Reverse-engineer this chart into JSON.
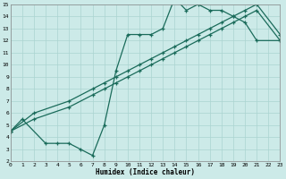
{
  "xlabel": "Humidex (Indice chaleur)",
  "xlim": [
    0,
    23
  ],
  "ylim": [
    2,
    15
  ],
  "xticks": [
    0,
    1,
    2,
    3,
    4,
    5,
    6,
    7,
    8,
    9,
    10,
    11,
    12,
    13,
    14,
    15,
    16,
    17,
    18,
    19,
    20,
    21,
    22,
    23
  ],
  "yticks": [
    2,
    3,
    4,
    5,
    6,
    7,
    8,
    9,
    10,
    11,
    12,
    13,
    14,
    15
  ],
  "bg_color": "#cceae8",
  "grid_color": "#aad4d0",
  "line_color": "#1a6b5a",
  "curve1_x": [
    0,
    1,
    3,
    4,
    5,
    6,
    7,
    8,
    9,
    10,
    11,
    12,
    13,
    14,
    15,
    16,
    17,
    18,
    19,
    20,
    21,
    23
  ],
  "curve1_y": [
    4.5,
    5.5,
    3.5,
    3.5,
    3.5,
    3.0,
    2.5,
    5.0,
    9.5,
    12.5,
    12.5,
    12.5,
    13.0,
    15.5,
    14.5,
    15.0,
    14.5,
    14.5,
    14.0,
    13.5,
    12.0,
    12.0
  ],
  "curve2_x": [
    0,
    2,
    5,
    7,
    8,
    9,
    10,
    11,
    12,
    13,
    14,
    15,
    16,
    17,
    18,
    19,
    20,
    21,
    23
  ],
  "curve2_y": [
    4.5,
    5.5,
    6.5,
    7.5,
    8.0,
    8.5,
    9.0,
    9.5,
    10.0,
    10.5,
    11.0,
    11.5,
    12.0,
    12.5,
    13.0,
    13.5,
    14.0,
    14.5,
    12.0
  ],
  "curve3_x": [
    0,
    2,
    5,
    7,
    8,
    9,
    10,
    11,
    12,
    13,
    14,
    15,
    16,
    17,
    18,
    19,
    20,
    21,
    23
  ],
  "curve3_y": [
    4.5,
    6.0,
    7.0,
    8.0,
    8.5,
    9.0,
    9.5,
    10.0,
    10.5,
    11.0,
    11.5,
    12.0,
    12.5,
    13.0,
    13.5,
    14.0,
    14.5,
    15.0,
    12.5
  ]
}
